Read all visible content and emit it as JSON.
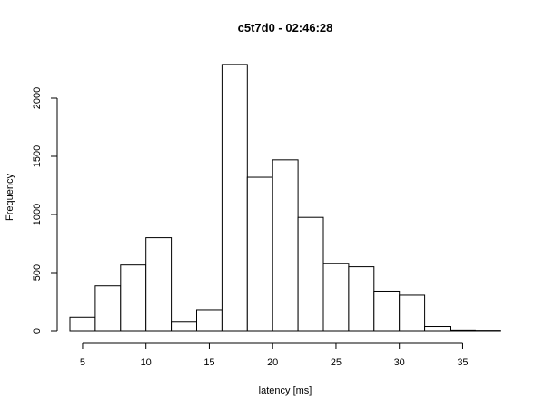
{
  "chart_data": {
    "type": "bar",
    "title": "c5t7d0 - 02:46:28",
    "xlabel": "latency [ms]",
    "ylabel": "Frequency",
    "bin_edges": [
      4,
      6,
      8,
      10,
      12,
      14,
      16,
      18,
      20,
      22,
      24,
      26,
      28,
      30,
      32,
      34,
      36,
      38
    ],
    "values": [
      115,
      385,
      565,
      800,
      80,
      180,
      2290,
      1320,
      1470,
      975,
      580,
      550,
      340,
      305,
      35,
      5,
      3
    ],
    "xlim": [
      4,
      38
    ],
    "ylim": [
      0,
      2290
    ],
    "x_ticks": [
      5,
      10,
      15,
      20,
      25,
      30,
      35
    ],
    "y_ticks": [
      0,
      500,
      1000,
      1500,
      2000
    ],
    "grid": false,
    "bar_fill": "#ffffff",
    "bar_stroke": "#000000"
  }
}
